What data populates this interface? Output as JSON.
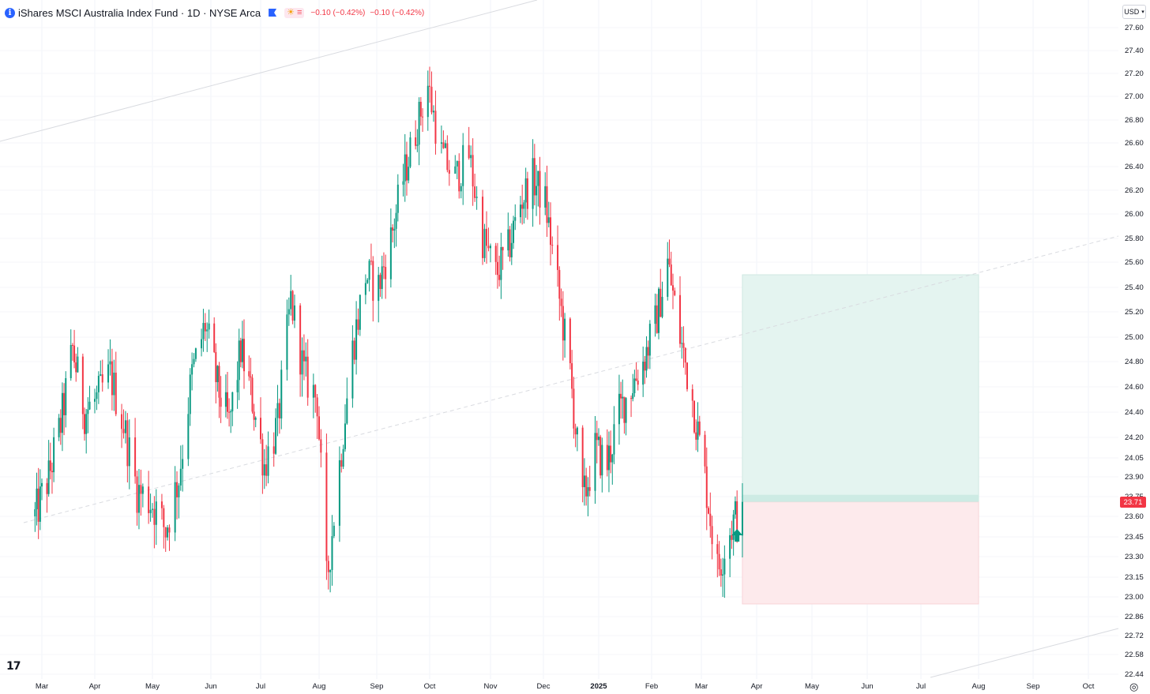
{
  "legend": {
    "title": "iShares MSCI Australia Index Fund · 1D · NYSE Arca",
    "change1": "−0.10 (−0.42%)",
    "change2": "−0.10 (−0.42%)"
  },
  "currency": "USD",
  "price_tag": "23.71",
  "colors": {
    "up": "#089981",
    "down": "#f23645",
    "profit_zone": "#e4f4f0",
    "loss_zone": "#fdeaec",
    "accent": "#2962ff"
  },
  "chart_data": {
    "type": "candlestick",
    "price_scale": {
      "ticks": [
        "27.60",
        "27.40",
        "27.20",
        "27.00",
        "26.80",
        "26.60",
        "26.40",
        "26.20",
        "26.00",
        "25.80",
        "25.60",
        "25.40",
        "25.20",
        "25.00",
        "24.80",
        "24.60",
        "24.40",
        "24.20",
        "24.05",
        "23.90",
        "23.75",
        "23.60",
        "23.45",
        "23.30",
        "23.15",
        "23.00",
        "22.86",
        "22.72",
        "22.58",
        "22.44"
      ],
      "range": [
        22.44,
        27.6
      ]
    },
    "time_axis": [
      "Mar",
      "Apr",
      "May",
      "Jun",
      "Jul",
      "Aug",
      "Sep",
      "Oct",
      "Nov",
      "Dec",
      "2025",
      "Feb",
      "Mar",
      "Apr",
      "May",
      "Jun",
      "Jul",
      "Aug",
      "Sep",
      "Oct"
    ],
    "close_path": [
      [
        "2024-02-26",
        23.6
      ],
      [
        "2024-03-05",
        23.9
      ],
      [
        "2024-03-12",
        24.3
      ],
      [
        "2024-03-19",
        24.9
      ],
      [
        "2024-03-26",
        24.4
      ],
      [
        "2024-04-02",
        24.5
      ],
      [
        "2024-04-09",
        24.7
      ],
      [
        "2024-04-16",
        24.3
      ],
      [
        "2024-04-23",
        23.8
      ],
      [
        "2024-05-01",
        23.7
      ],
      [
        "2024-05-08",
        23.5
      ],
      [
        "2024-05-15",
        23.9
      ],
      [
        "2024-05-22",
        24.7
      ],
      [
        "2024-05-29",
        25.1
      ],
      [
        "2024-06-05",
        24.6
      ],
      [
        "2024-06-12",
        24.3
      ],
      [
        "2024-06-19",
        24.9
      ],
      [
        "2024-06-26",
        24.5
      ],
      [
        "2024-07-03",
        24.0
      ],
      [
        "2024-07-10",
        24.3
      ],
      [
        "2024-07-17",
        25.3
      ],
      [
        "2024-07-24",
        24.7
      ],
      [
        "2024-07-31",
        24.5
      ],
      [
        "2024-08-05",
        23.1
      ],
      [
        "2024-08-12",
        24.0
      ],
      [
        "2024-08-19",
        24.9
      ],
      [
        "2024-08-26",
        25.5
      ],
      [
        "2024-09-02",
        25.4
      ],
      [
        "2024-09-09",
        25.8
      ],
      [
        "2024-09-16",
        26.3
      ],
      [
        "2024-09-23",
        26.7
      ],
      [
        "2024-09-30",
        27.1
      ],
      [
        "2024-10-07",
        26.5
      ],
      [
        "2024-10-14",
        26.3
      ],
      [
        "2024-10-21",
        26.5
      ],
      [
        "2024-10-28",
        25.8
      ],
      [
        "2024-11-04",
        25.5
      ],
      [
        "2024-11-11",
        25.7
      ],
      [
        "2024-11-18",
        26.1
      ],
      [
        "2024-11-25",
        26.3
      ],
      [
        "2024-12-02",
        26.1
      ],
      [
        "2024-12-09",
        25.4
      ],
      [
        "2024-12-16",
        24.7
      ],
      [
        "2024-12-23",
        23.7
      ],
      [
        "2024-12-30",
        24.1
      ],
      [
        "2025-01-06",
        24.0
      ],
      [
        "2025-01-13",
        24.4
      ],
      [
        "2025-01-20",
        24.6
      ],
      [
        "2025-01-27",
        24.8
      ],
      [
        "2025-02-03",
        25.1
      ],
      [
        "2025-02-10",
        25.6
      ],
      [
        "2025-02-17",
        25.0
      ],
      [
        "2025-02-24",
        24.5
      ],
      [
        "2025-03-03",
        23.9
      ],
      [
        "2025-03-10",
        23.2
      ],
      [
        "2025-03-17",
        23.5
      ],
      [
        "2025-03-24",
        23.71
      ]
    ],
    "position": {
      "type": "long",
      "entry": 23.71,
      "target": 25.5,
      "stop": 22.95,
      "start": "2025-03-24",
      "end": "2025-08-01"
    }
  }
}
